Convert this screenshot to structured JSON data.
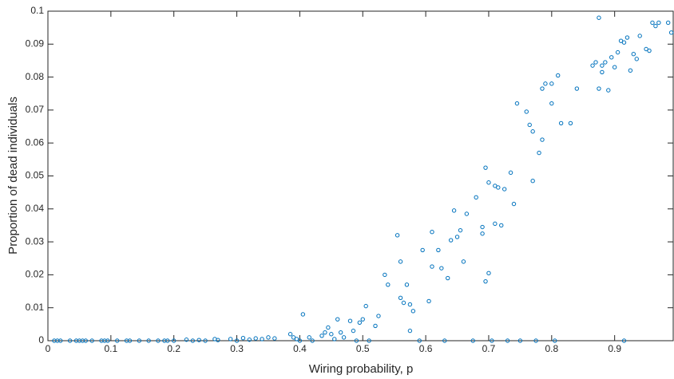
{
  "chart_data": {
    "type": "scatter",
    "x_label": "Wiring probability, p",
    "y_label": "Proportion of dead individuals",
    "color": "#0072bd",
    "xlim": [
      0,
      0.993
    ],
    "ylim": [
      0,
      0.1
    ],
    "xticks": [
      0,
      0.1,
      0.2,
      0.3,
      0.4,
      0.5,
      0.6,
      0.7,
      0.8,
      0.9
    ],
    "yticks": [
      0,
      0.01,
      0.02,
      0.03,
      0.04,
      0.05,
      0.06,
      0.07,
      0.08,
      0.09,
      0.1
    ],
    "x": [
      0.01,
      0.015,
      0.02,
      0.035,
      0.045,
      0.05,
      0.055,
      0.06,
      0.07,
      0.085,
      0.09,
      0.095,
      0.11,
      0.125,
      0.13,
      0.145,
      0.16,
      0.175,
      0.185,
      0.19,
      0.2,
      0.22,
      0.23,
      0.24,
      0.25,
      0.265,
      0.27,
      0.29,
      0.3,
      0.31,
      0.32,
      0.33,
      0.34,
      0.35,
      0.36,
      0.385,
      0.39,
      0.395,
      0.4,
      0.405,
      0.415,
      0.42,
      0.435,
      0.44,
      0.445,
      0.45,
      0.455,
      0.46,
      0.465,
      0.47,
      0.48,
      0.485,
      0.49,
      0.495,
      0.5,
      0.505,
      0.51,
      0.52,
      0.525,
      0.535,
      0.54,
      0.555,
      0.56,
      0.56,
      0.565,
      0.57,
      0.575,
      0.575,
      0.58,
      0.59,
      0.595,
      0.605,
      0.61,
      0.61,
      0.62,
      0.625,
      0.63,
      0.635,
      0.64,
      0.645,
      0.65,
      0.655,
      0.66,
      0.665,
      0.675,
      0.68,
      0.69,
      0.69,
      0.695,
      0.695,
      0.7,
      0.7,
      0.705,
      0.71,
      0.71,
      0.715,
      0.72,
      0.725,
      0.73,
      0.735,
      0.74,
      0.745,
      0.75,
      0.76,
      0.765,
      0.77,
      0.77,
      0.775,
      0.78,
      0.785,
      0.785,
      0.79,
      0.8,
      0.8,
      0.805,
      0.81,
      0.815,
      0.83,
      0.84,
      0.865,
      0.87,
      0.875,
      0.875,
      0.88,
      0.88,
      0.885,
      0.89,
      0.895,
      0.9,
      0.905,
      0.91,
      0.915,
      0.915,
      0.92,
      0.925,
      0.93,
      0.935,
      0.94,
      0.95,
      0.955,
      0.96,
      0.965,
      0.97,
      0.985,
      0.99
    ],
    "values": [
      0,
      0,
      0,
      0,
      0,
      0,
      0,
      0,
      0,
      0,
      0,
      0,
      0,
      0,
      0,
      0,
      0,
      0,
      0,
      0,
      0,
      0.0003,
      0,
      0.0002,
      0,
      0.0005,
      0.0002,
      0.0005,
      0,
      0.0008,
      0.0003,
      0.0007,
      0.0005,
      0.001,
      0.0007,
      0.002,
      0.001,
      0.0005,
      0,
      0.008,
      0.001,
      0,
      0.0015,
      0.0025,
      0.004,
      0.002,
      0.0005,
      0.0065,
      0.0025,
      0.001,
      0.006,
      0.003,
      0,
      0.0055,
      0.0065,
      0.0105,
      0,
      0.0045,
      0.0075,
      0.02,
      0.017,
      0.032,
      0.024,
      0.013,
      0.0115,
      0.017,
      0.003,
      0.011,
      0.009,
      0,
      0.0275,
      0.012,
      0.0225,
      0.033,
      0.0275,
      0.022,
      0,
      0.019,
      0.0305,
      0.0395,
      0.0315,
      0.0335,
      0.024,
      0.0385,
      0,
      0.0435,
      0.0325,
      0.0345,
      0.0525,
      0.018,
      0.0205,
      0.048,
      0,
      0.0355,
      0.047,
      0.0465,
      0.035,
      0.046,
      0,
      0.051,
      0.0415,
      0.072,
      0,
      0.0695,
      0.0655,
      0.0635,
      0.0485,
      0,
      0.057,
      0.061,
      0.0765,
      0.078,
      0.072,
      0.078,
      0,
      0.0805,
      0.066,
      0.066,
      0.0765,
      0.0835,
      0.0845,
      0.098,
      0.0765,
      0.0815,
      0.0835,
      0.0845,
      0.076,
      0.086,
      0.083,
      0.0875,
      0.091,
      0.0905,
      0,
      0.092,
      0.082,
      0.087,
      0.0855,
      0.0925,
      0.0885,
      0.088,
      0.0965,
      0.0955,
      0.0965,
      0.0965,
      0.0935
    ]
  }
}
